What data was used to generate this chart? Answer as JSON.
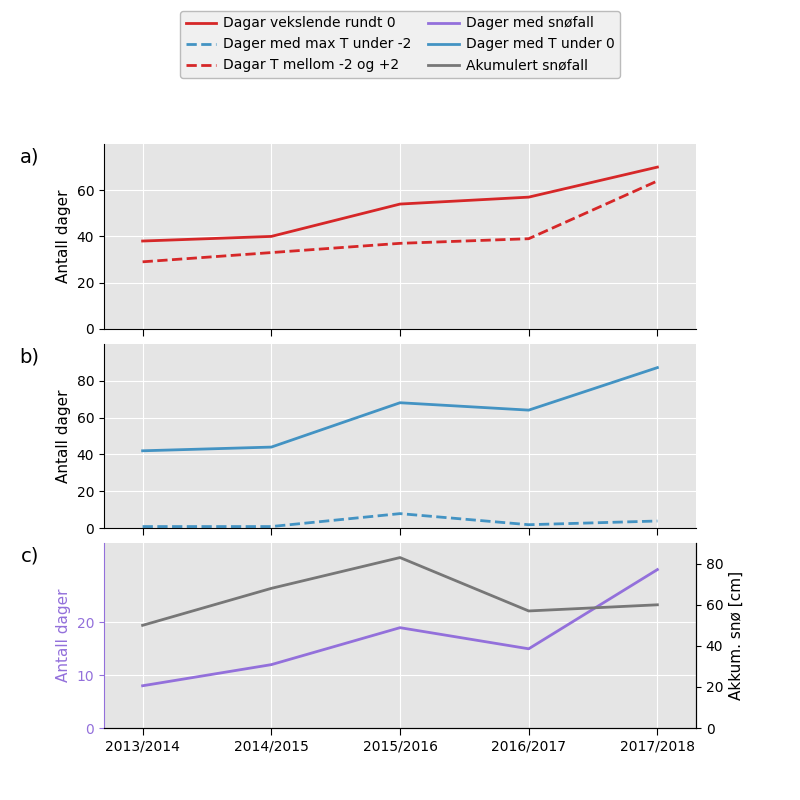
{
  "seasons": [
    "2013/2014",
    "2014/2015",
    "2015/2016",
    "2016/2017",
    "2017/2018"
  ],
  "panel_a": {
    "solid_red": [
      38,
      40,
      54,
      57,
      70
    ],
    "dashed_red": [
      29,
      33,
      37,
      39,
      64
    ],
    "ylim": [
      0,
      80
    ],
    "yticks": [
      0,
      20,
      40,
      60
    ],
    "ylabel": "Antall dager"
  },
  "panel_b": {
    "solid_blue": [
      42,
      44,
      68,
      64,
      87
    ],
    "dashed_blue": [
      1,
      1,
      8,
      2,
      4
    ],
    "ylim": [
      0,
      100
    ],
    "yticks": [
      0,
      20,
      40,
      60,
      80
    ],
    "ylabel": "Antall dager"
  },
  "panel_c": {
    "purple": [
      8,
      12,
      19,
      15,
      30
    ],
    "gray": [
      50,
      68,
      83,
      57,
      60
    ],
    "ylim_left": [
      0,
      35
    ],
    "ylim_right": [
      0,
      90
    ],
    "yticks_left": [
      0,
      10,
      20
    ],
    "yticks_right": [
      0,
      20,
      40,
      60,
      80
    ],
    "ylabel_left": "Antall dager",
    "ylabel_right": "Akkum. snø [cm]"
  },
  "legend": {
    "solid_red_label": "Dagar vekslende rundt 0",
    "dashed_red_label": "Dagar T mellom -2 og +2",
    "solid_blue_label": "Dager med T under 0",
    "dashed_blue_label": "Dager med max T under -2",
    "purple_label": "Dager med snøfall",
    "gray_label": "Akumulert snøfall"
  },
  "colors": {
    "red": "#d62728",
    "blue": "#4393c3",
    "purple": "#9370db",
    "gray": "#777777",
    "bg": "#e5e5e5"
  },
  "panel_labels": [
    "a)",
    "b)",
    "c)"
  ],
  "panel_label_fontsize": 14,
  "axis_label_fontsize": 11,
  "legend_fontsize": 10
}
